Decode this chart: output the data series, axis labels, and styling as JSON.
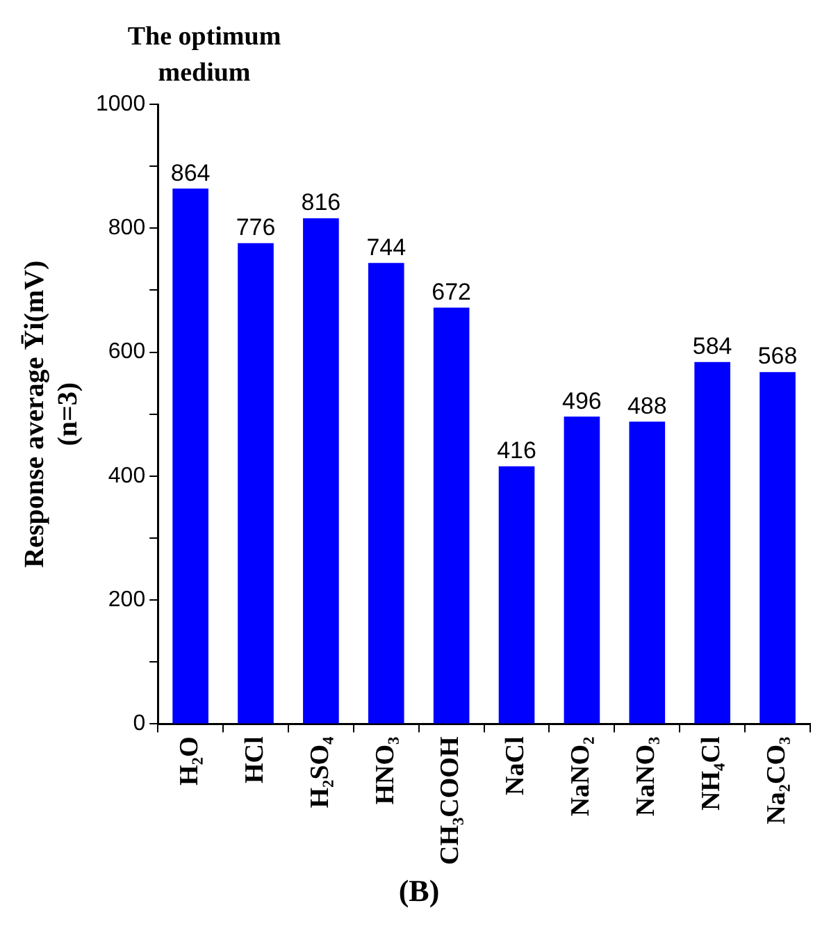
{
  "chart_data": {
    "type": "bar",
    "title": "The optimum medium",
    "ylabel": "Response average Ȳi(mV)\n(n=3)",
    "categories": [
      "H₂O",
      "HCl",
      "H₂SO₄",
      "HNO₃",
      "CH₃COOH",
      "NaCl",
      "NaNO₂",
      "NaNO₃",
      "NH₄Cl",
      "Na₂CO₃"
    ],
    "values": [
      864,
      776,
      816,
      744,
      672,
      416,
      496,
      488,
      584,
      568
    ],
    "color": "#0000ff",
    "ylim": [
      0,
      1000
    ],
    "yticks": [
      0,
      {
        "value": 100,
        "label": null
      },
      200,
      {
        "value": 300,
        "label": null
      },
      400,
      {
        "value": 500,
        "label": null
      },
      600,
      {
        "value": 700,
        "label": null
      },
      800,
      {
        "value": 900,
        "label": null
      },
      1000
    ],
    "data_labels": true,
    "grid": false,
    "legend": false,
    "annotations": [
      "(B)"
    ]
  }
}
